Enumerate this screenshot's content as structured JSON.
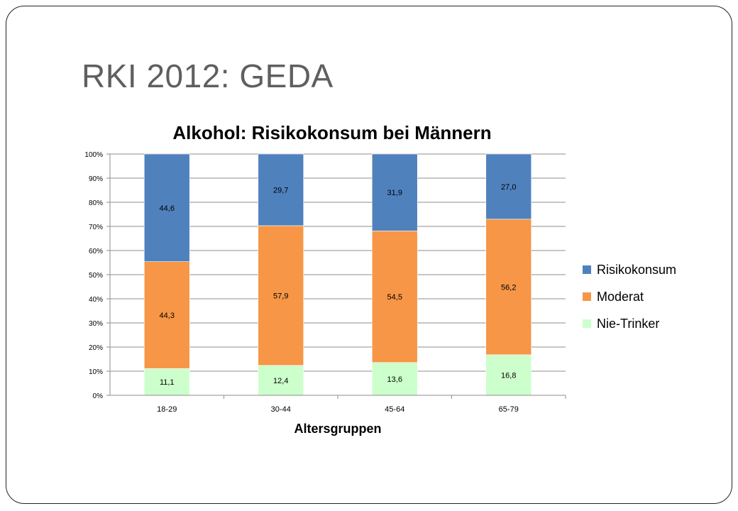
{
  "slide": {
    "title": "RKI 2012: GEDA"
  },
  "chart_data": {
    "type": "bar",
    "stacked": true,
    "percent_axis": true,
    "title": "Alkohol: Risikokonsum bei Männern",
    "xlabel": "Altersgruppen",
    "ylabel": "",
    "ylim": [
      0,
      100
    ],
    "y_ticks": [
      "0%",
      "10%",
      "20%",
      "30%",
      "40%",
      "50%",
      "60%",
      "70%",
      "80%",
      "90%",
      "100%"
    ],
    "categories": [
      "18-29",
      "30-44",
      "45-64",
      "65-79"
    ],
    "series": [
      {
        "name": "Nie-Trinker",
        "values": [
          11.1,
          12.4,
          13.6,
          16.8
        ],
        "labels": [
          "11,1",
          "12,4",
          "13,6",
          "16,8"
        ],
        "color": "#ccffcc"
      },
      {
        "name": "Moderat",
        "values": [
          44.3,
          57.9,
          54.5,
          56.2
        ],
        "labels": [
          "44,3",
          "57,9",
          "54,5",
          "56,2"
        ],
        "color": "#f79646"
      },
      {
        "name": "Risikokonsum",
        "values": [
          44.6,
          29.7,
          31.9,
          27.0
        ],
        "labels": [
          "44,6",
          "29,7",
          "31,9",
          "27,0"
        ],
        "color": "#4f81bd"
      }
    ],
    "grid": true,
    "legend_position": "right",
    "legend_order": [
      "Risikokonsum",
      "Moderat",
      "Nie-Trinker"
    ]
  }
}
